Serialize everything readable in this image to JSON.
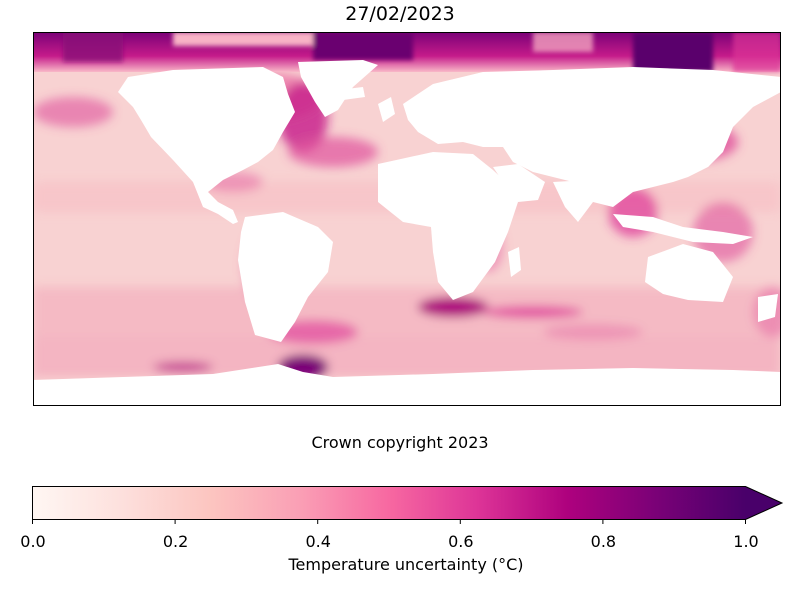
{
  "title": "27/02/2023",
  "credit": "Crown copyright 2023",
  "colorbar": {
    "label": "Temperature uncertainty (°C)",
    "min": 0.0,
    "max": 1.0,
    "extend": "max",
    "ticks": [
      "0.0",
      "0.2",
      "0.4",
      "0.6",
      "0.8",
      "1.0"
    ],
    "colormap": [
      "#fff7f3",
      "#fde0dd",
      "#fcc5c0",
      "#fa9fb5",
      "#f768a1",
      "#dd3497",
      "#ae017e",
      "#7a0177",
      "#49006a"
    ]
  },
  "map": {
    "projection": "plate-carree",
    "land_color": "#ffffff",
    "ocean_base_color": "#f8cfcf"
  }
}
